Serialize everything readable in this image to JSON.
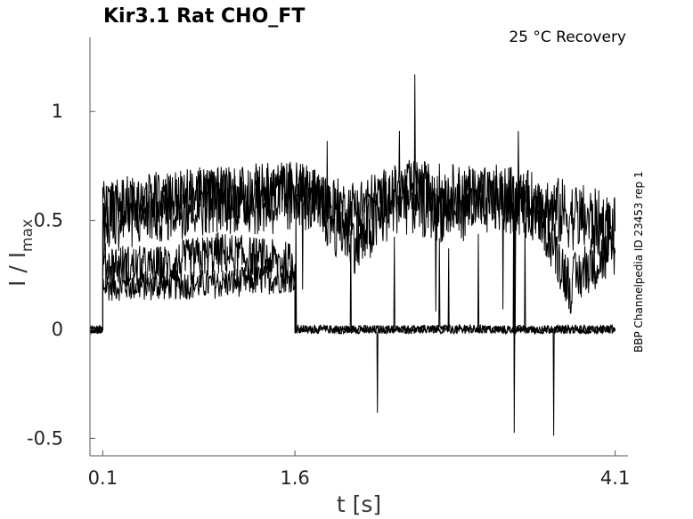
{
  "chart_data": {
    "type": "line",
    "title": "Kir3.1  Rat  CHO_FT",
    "condition": "25 °C  Recovery",
    "side_label": "BBP Channelpedia ID 23453 rep 1",
    "xlabel": "t [s]",
    "ylabel": "I / I",
    "ylabel_sub": "max",
    "xlim": [
      0.0,
      4.2
    ],
    "ylim": [
      -0.58,
      1.34
    ],
    "x_ticks": [
      0.1,
      1.6,
      4.1
    ],
    "x_tick_labels": [
      "0.1",
      "1.6",
      "4.1"
    ],
    "y_ticks": [
      -0.5,
      0,
      0.5,
      1
    ],
    "y_tick_labels": [
      "-0.5",
      "0",
      "0.5",
      "1"
    ],
    "grid": false,
    "legend": "none",
    "series": [
      {
        "trace": "1",
        "values_desc": "noisy current trace",
        "x": [
          0.0,
          0.1,
          0.1,
          0.5,
          1.0,
          1.6,
          1.6,
          2.5,
          3.0,
          3.5,
          4.0,
          4.1
        ],
        "y": [
          0.0,
          0.0,
          0.2,
          0.2,
          0.21,
          0.24,
          0.0,
          0.0,
          0.0,
          0.0,
          0.0,
          0.0
        ]
      },
      {
        "trace": "2",
        "x": [
          0.0,
          0.1,
          0.1,
          0.5,
          1.0,
          1.6,
          1.6,
          2.0,
          2.5,
          3.0,
          3.5,
          4.0,
          4.1
        ],
        "y": [
          0.0,
          0.0,
          0.3,
          0.28,
          0.35,
          0.3,
          0.0,
          0.0,
          0.0,
          0.0,
          0.0,
          0.0,
          0.0
        ]
      },
      {
        "trace": "3",
        "x": [
          0.0,
          0.1,
          0.1,
          0.5,
          1.0,
          1.6,
          1.6,
          2.0,
          2.5,
          3.0,
          3.5,
          3.75,
          3.9,
          4.1
        ],
        "y": [
          0.0,
          0.0,
          0.55,
          0.6,
          0.62,
          0.65,
          0.65,
          0.55,
          0.65,
          0.62,
          0.55,
          0.2,
          0.3,
          0.35
        ]
      },
      {
        "trace": "4",
        "x": [
          0.0,
          0.1,
          0.1,
          0.5,
          1.0,
          1.6,
          1.6,
          2.1,
          2.4,
          2.8,
          3.2,
          3.6,
          3.9,
          4.1
        ],
        "y": [
          0.0,
          0.0,
          0.5,
          0.55,
          0.6,
          0.58,
          0.65,
          0.4,
          0.6,
          0.55,
          0.6,
          0.55,
          0.5,
          0.45
        ]
      }
    ]
  }
}
